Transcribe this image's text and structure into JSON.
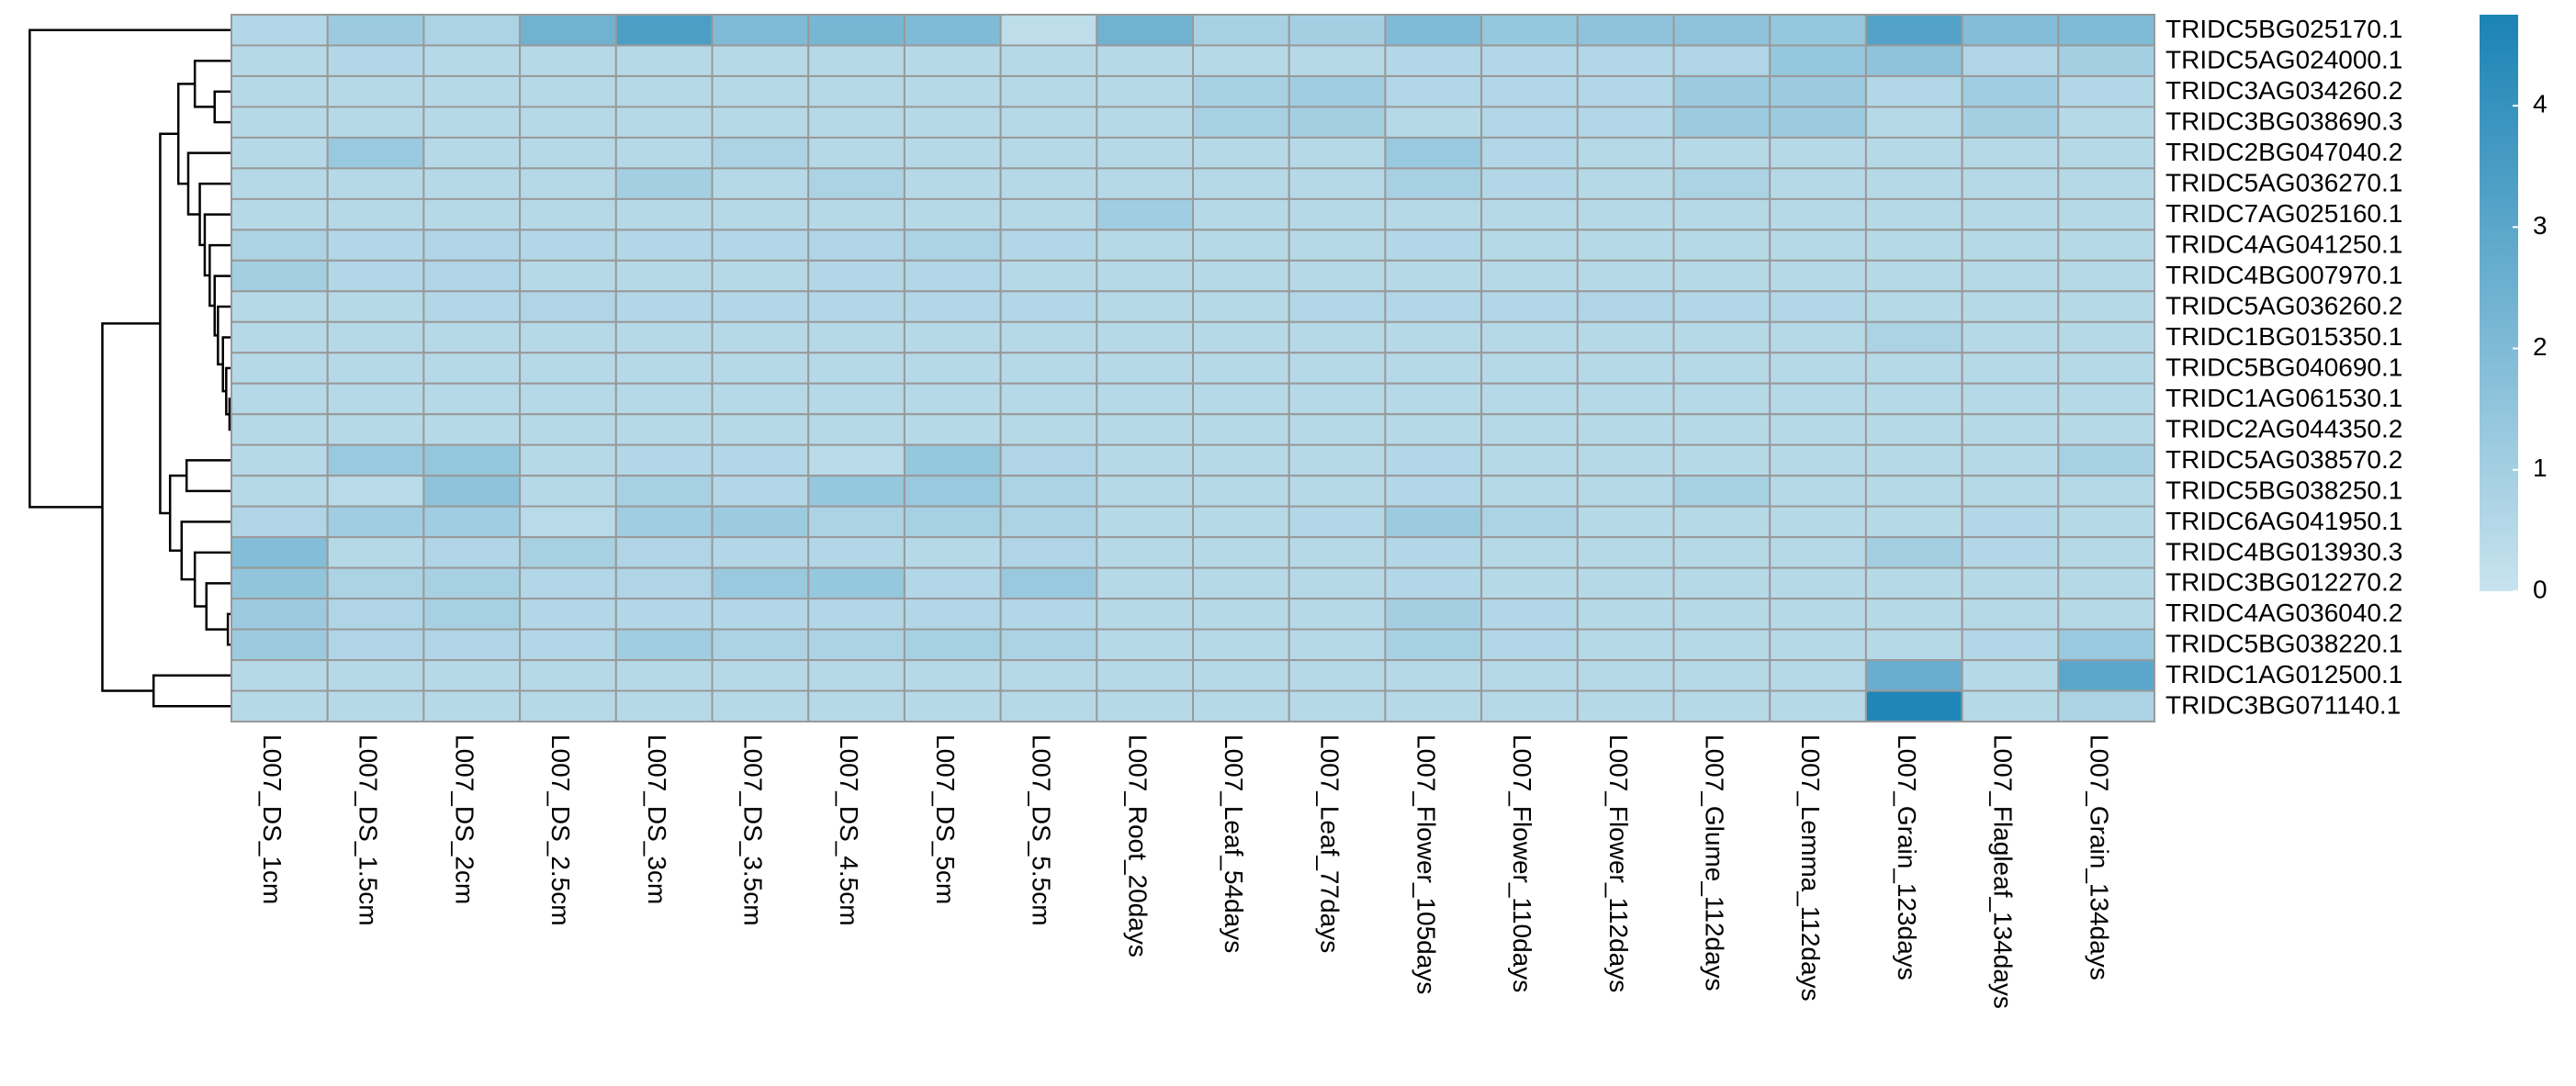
{
  "chart_data": {
    "type": "heatmap",
    "rows": [
      "TRIDC5BG025170.1",
      "TRIDC5AG024000.1",
      "TRIDC3AG034260.2",
      "TRIDC3BG038690.3",
      "TRIDC2BG047040.2",
      "TRIDC5AG036270.1",
      "TRIDC7AG025160.1",
      "TRIDC4AG041250.1",
      "TRIDC4BG007970.1",
      "TRIDC5AG036260.2",
      "TRIDC1BG015350.1",
      "TRIDC5BG040690.1",
      "TRIDC1AG061530.1",
      "TRIDC2AG044350.2",
      "TRIDC5AG038570.2",
      "TRIDC5BG038250.1",
      "TRIDC6AG041950.1",
      "TRIDC4BG013930.3",
      "TRIDC3BG012270.2",
      "TRIDC4AG036040.2",
      "TRIDC5BG038220.1",
      "TRIDC1AG012500.1",
      "TRIDC3BG071140.1"
    ],
    "columns": [
      "L007_DS_1cm",
      "L007_DS_1.5cm",
      "L007_DS_2cm",
      "L007_DS_2.5cm",
      "L007_DS_3cm",
      "L007_DS_3.5cm",
      "L007_DS_4.5cm",
      "L007_DS_5cm",
      "L007_DS_5.5cm",
      "L007_Root_20days",
      "L007_Leaf_54days",
      "L007_Leaf_77days",
      "L007_Flower_105days",
      "L007_Flower_110days",
      "L007_Flower_112days",
      "L007_Glume_112days",
      "L007_Lemma_112days",
      "L007_Grain_123days",
      "L007_Flagleaf_134days",
      "L007_Grain_134days"
    ],
    "values": [
      [
        0.6,
        1.2,
        0.8,
        2.4,
        3.4,
        2.0,
        2.2,
        2.0,
        0.3,
        2.4,
        0.9,
        1.0,
        2.0,
        1.4,
        1.6,
        1.6,
        1.4,
        3.2,
        1.9,
        2.0
      ],
      [
        0.5,
        0.6,
        0.5,
        0.5,
        0.5,
        0.5,
        0.5,
        0.5,
        0.5,
        0.5,
        0.5,
        0.5,
        0.6,
        0.6,
        0.6,
        0.7,
        1.4,
        1.6,
        0.7,
        1.0
      ],
      [
        0.5,
        0.5,
        0.5,
        0.5,
        0.5,
        0.5,
        0.5,
        0.5,
        0.5,
        0.5,
        0.9,
        1.1,
        0.6,
        0.6,
        0.6,
        1.2,
        1.2,
        0.6,
        1.1,
        0.6
      ],
      [
        0.5,
        0.5,
        0.5,
        0.5,
        0.5,
        0.5,
        0.5,
        0.5,
        0.5,
        0.5,
        0.9,
        1.0,
        0.5,
        0.6,
        0.6,
        1.2,
        1.2,
        0.5,
        1.0,
        0.5
      ],
      [
        0.5,
        1.3,
        0.5,
        0.5,
        0.5,
        0.8,
        0.5,
        0.5,
        0.5,
        0.5,
        0.5,
        0.5,
        1.3,
        0.6,
        0.5,
        0.5,
        0.5,
        0.5,
        0.5,
        0.5
      ],
      [
        0.5,
        0.5,
        0.5,
        0.5,
        1.0,
        0.5,
        0.8,
        0.5,
        0.5,
        0.5,
        0.5,
        0.5,
        0.9,
        0.6,
        0.5,
        0.8,
        0.5,
        0.5,
        0.5,
        0.5
      ],
      [
        0.5,
        0.5,
        0.5,
        0.5,
        0.5,
        0.5,
        0.5,
        0.5,
        0.5,
        1.1,
        0.5,
        0.5,
        0.5,
        0.5,
        0.5,
        0.5,
        0.5,
        0.5,
        0.5,
        0.5
      ],
      [
        0.8,
        0.6,
        0.7,
        0.6,
        0.6,
        0.6,
        0.7,
        0.8,
        0.6,
        0.5,
        0.5,
        0.5,
        0.6,
        0.5,
        0.5,
        0.5,
        0.5,
        0.5,
        0.5,
        0.5
      ],
      [
        1.0,
        0.6,
        0.7,
        0.5,
        0.5,
        0.5,
        0.6,
        0.6,
        0.5,
        0.5,
        0.5,
        0.5,
        0.5,
        0.5,
        0.5,
        0.5,
        0.5,
        0.5,
        0.5,
        0.5
      ],
      [
        0.5,
        0.5,
        0.6,
        0.7,
        0.6,
        0.6,
        0.6,
        0.6,
        0.6,
        0.5,
        0.5,
        0.6,
        0.6,
        0.6,
        0.7,
        0.6,
        0.6,
        0.5,
        0.5,
        0.5
      ],
      [
        0.5,
        0.5,
        0.5,
        0.5,
        0.5,
        0.5,
        0.5,
        0.5,
        0.5,
        0.5,
        0.5,
        0.5,
        0.5,
        0.5,
        0.5,
        0.5,
        0.5,
        0.8,
        0.5,
        0.5
      ],
      [
        0.5,
        0.5,
        0.5,
        0.5,
        0.5,
        0.5,
        0.5,
        0.5,
        0.5,
        0.5,
        0.5,
        0.5,
        0.5,
        0.5,
        0.5,
        0.5,
        0.5,
        0.5,
        0.5,
        0.5
      ],
      [
        0.5,
        0.5,
        0.5,
        0.5,
        0.5,
        0.5,
        0.5,
        0.5,
        0.5,
        0.5,
        0.5,
        0.5,
        0.5,
        0.5,
        0.5,
        0.5,
        0.5,
        0.5,
        0.5,
        0.5
      ],
      [
        0.5,
        0.5,
        0.5,
        0.5,
        0.5,
        0.5,
        0.5,
        0.5,
        0.5,
        0.5,
        0.5,
        0.5,
        0.5,
        0.5,
        0.5,
        0.5,
        0.5,
        0.5,
        0.5,
        0.5
      ],
      [
        0.5,
        1.3,
        1.4,
        0.5,
        0.6,
        0.6,
        0.4,
        1.4,
        0.7,
        0.5,
        0.5,
        0.5,
        0.6,
        0.5,
        0.5,
        0.5,
        0.5,
        0.5,
        0.5,
        0.9
      ],
      [
        0.5,
        0.4,
        1.6,
        0.5,
        0.9,
        0.6,
        1.4,
        1.3,
        0.8,
        0.5,
        0.5,
        0.5,
        0.6,
        0.5,
        0.5,
        0.9,
        0.5,
        0.5,
        0.5,
        0.5
      ],
      [
        0.7,
        1.1,
        1.1,
        0.4,
        1.1,
        1.2,
        0.8,
        0.9,
        0.8,
        0.5,
        0.5,
        0.6,
        1.2,
        0.8,
        0.5,
        0.5,
        0.5,
        0.5,
        0.6,
        0.5
      ],
      [
        1.9,
        0.5,
        0.7,
        0.9,
        0.7,
        0.6,
        0.6,
        0.5,
        0.7,
        0.5,
        0.5,
        0.5,
        0.6,
        0.5,
        0.5,
        0.5,
        0.5,
        1.0,
        0.6,
        0.5
      ],
      [
        1.5,
        0.8,
        0.9,
        0.6,
        0.7,
        1.3,
        1.4,
        0.6,
        1.3,
        0.5,
        0.5,
        0.5,
        0.6,
        0.5,
        0.5,
        0.5,
        0.5,
        0.5,
        0.5,
        0.5
      ],
      [
        1.2,
        0.7,
        0.9,
        0.6,
        0.6,
        0.6,
        0.6,
        0.6,
        0.6,
        0.5,
        0.5,
        0.5,
        1.0,
        0.6,
        0.5,
        0.5,
        0.5,
        0.5,
        0.5,
        0.5
      ],
      [
        1.2,
        0.7,
        0.7,
        0.6,
        1.1,
        0.8,
        0.8,
        0.9,
        0.8,
        0.5,
        0.5,
        0.5,
        0.9,
        0.6,
        0.5,
        0.5,
        0.5,
        0.5,
        0.6,
        1.3
      ],
      [
        0.5,
        0.5,
        0.5,
        0.5,
        0.5,
        0.5,
        0.5,
        0.5,
        0.5,
        0.5,
        0.5,
        0.5,
        0.5,
        0.5,
        0.5,
        0.5,
        0.5,
        2.6,
        0.5,
        3.0
      ],
      [
        0.5,
        0.5,
        0.5,
        0.5,
        0.5,
        0.5,
        0.5,
        0.5,
        0.5,
        0.5,
        0.5,
        0.5,
        0.5,
        0.5,
        0.5,
        0.5,
        0.5,
        4.6,
        0.5,
        0.8
      ]
    ],
    "zlim": [
      0,
      4.75
    ],
    "zticks": [
      0,
      1,
      2,
      3,
      4
    ],
    "colors": [
      "#c8e3ee",
      "#1b83b5"
    ],
    "border_color": "#999999"
  }
}
